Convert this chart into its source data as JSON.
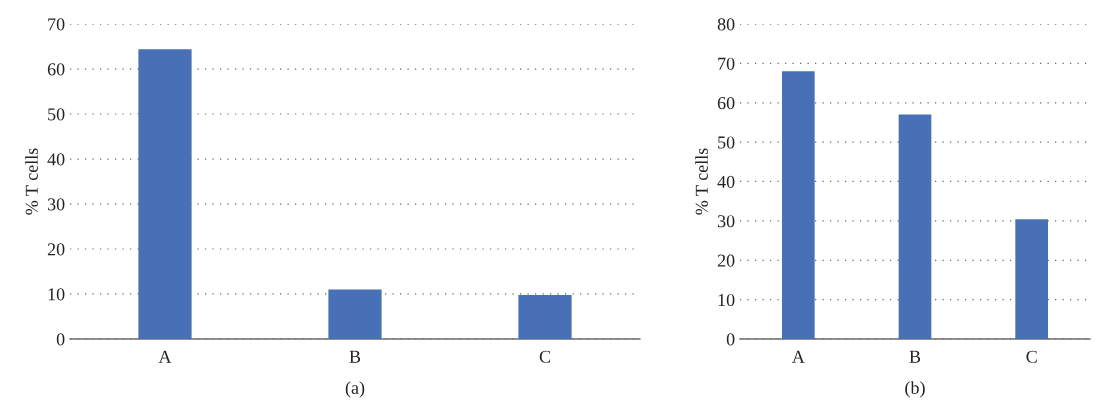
{
  "chart_data": [
    {
      "type": "bar",
      "categories": [
        "A",
        "B",
        "C"
      ],
      "values": [
        64.4,
        11.0,
        9.8
      ],
      "color": "#4770b6",
      "ylabel": "% T cells",
      "ylim": [
        0,
        70
      ],
      "yticks": [
        0,
        10,
        20,
        30,
        40,
        50,
        60,
        70
      ],
      "grid": "y",
      "annotations": [
        "(a)"
      ]
    },
    {
      "type": "bar",
      "categories": [
        "A",
        "B",
        "C"
      ],
      "values": [
        68,
        57,
        30.4
      ],
      "color": "#4770b6",
      "ylabel": "% T cells",
      "ylim": [
        0,
        80
      ],
      "yticks": [
        0,
        10,
        20,
        30,
        40,
        50,
        60,
        70,
        80
      ],
      "grid": "y",
      "annotations": [
        "(b)"
      ]
    }
  ]
}
